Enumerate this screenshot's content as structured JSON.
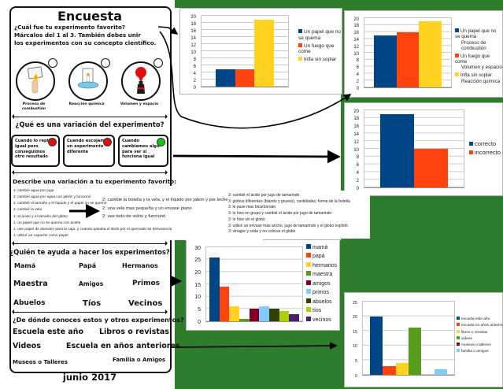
{
  "background_color": "#2d7d2d",
  "worksheet": {
    "title": "Encuesta",
    "intro_lines": [
      "¿Cuál fue tu experimento favorito?",
      "Márcalos del 1 al 3. También debes unir",
      "los experimentos con su concepto científico."
    ],
    "experiments": [
      {
        "icon": "burning-paper-icon",
        "concept": "Proceso de combustión"
      },
      {
        "icon": "candle-in-water-icon",
        "concept": "Reacción química"
      },
      {
        "icon": "balloon-bottle-icon",
        "concept": "Volumen y espacio"
      }
    ],
    "variation": {
      "question": "¿Qué es una variación del experimento?",
      "options": [
        {
          "text": "Cuando lo repito igual pero conseguimos otro resultado",
          "dot_color": "#e01010"
        },
        {
          "text": "Cuando escojamos un experimento diferente",
          "dot_color": "#e01010"
        },
        {
          "text": "Cuando cambiamos algo para ver si funciona igual",
          "dot_color": "#16c416"
        }
      ]
    },
    "describe": {
      "heading": "Describe una variación a tu experimento favorito:",
      "list1": [
        "1: cambié agua por jugo",
        "1: cambié agua por agua con jabón y funcionó",
        "1: cambié el tamaño y el líquido y el papel no se quemó",
        "1: cambié la vela",
        "1: el ácido y el tamaño del globo",
        "1: un papel que no se quema con aceite",
        "1: use papel de aluminio para la caja, y cuando pasaba el dedo por el quemado se desvanecía",
        "1: utilicé un capacito como papel"
      ],
      "list2": [
        "2: cambié la botella y la vela, y el líquido por jabón y por leche",
        "2: una vela mas pequeña y un envase plano",
        "2: use todo de vidrio y funcionó"
      ],
      "list3": [
        "3: cambié el ácido por jugo de tamarindo",
        "3: globos diferentes (blando y grueso), cantidades, forma de la botella",
        "3: le puse mas bicarbonato",
        "3: lo hice en grupo y cambié el ácido por jugo de tamarindo",
        "3: lo hice sin el globo",
        "3: utilicé un envase más ancho, jugo de tamarindo y el globo explotó",
        "3: vinagre y soda y no colocar el globo"
      ]
    },
    "who": {
      "question": "¿Quién te ayuda a hacer los experimentos?",
      "names": [
        "Mamá",
        "Papá",
        "Hermanos",
        "Maestra",
        "Amigos",
        "Primos",
        "Abuelos",
        "Tíos",
        "Vecinos"
      ]
    },
    "where": {
      "question": "¿De dónde conoces estos y otros experimentos?",
      "items": [
        "Escuela este año",
        "Libros o revistas",
        "Videos",
        "Escuela en años anteriores",
        "Museos o Talleres",
        "Familia o Amigos"
      ]
    },
    "footer": "junio 2017"
  },
  "chart_data": [
    {
      "type": "bar",
      "categories": [
        "Un papel que no se quema",
        "Un fuego que come",
        "Infla sin soplar"
      ],
      "values": [
        5,
        5,
        19
      ],
      "colors": [
        "#004586",
        "#ff420e",
        "#ffd320"
      ],
      "legend": [
        "Un papel que no se quema",
        "Un fuego que come",
        "Infla sin soplar"
      ],
      "title": "",
      "xlabel": "",
      "ylabel": "",
      "ylim": [
        0,
        20
      ],
      "ystep": 2,
      "grid": true,
      "legend_position": "right",
      "group_fraction": 0.68
    },
    {
      "type": "bar",
      "categories": [
        "Un papel que no se quema",
        "Un fuego que come",
        "Infla sin soplar"
      ],
      "values": [
        15,
        16,
        19
      ],
      "colors": [
        "#004586",
        "#ff420e",
        "#ffd320"
      ],
      "legend": [
        "Un papel que no se quema",
        "Un fuego que come",
        "Infla sin soplar"
      ],
      "legend_sub": [
        "Proceso de combustión",
        "Volumen y espacio",
        "Reacción química"
      ],
      "title": "",
      "xlabel": "",
      "ylabel": "",
      "ylim": [
        0,
        20
      ],
      "ystep": 2,
      "grid": true,
      "legend_position": "right",
      "group_fraction": 0.78
    },
    {
      "type": "bar",
      "categories": [
        "correcto",
        "incorrecto"
      ],
      "values": [
        19,
        10
      ],
      "colors": [
        "#004586",
        "#ff420e"
      ],
      "legend": [
        "correcto",
        "incorrecto"
      ],
      "title": "",
      "xlabel": "",
      "ylabel": "",
      "ylim": [
        0,
        20
      ],
      "ystep": 2,
      "grid": true,
      "legend_position": "right",
      "group_fraction": 0.68
    },
    {
      "type": "bar",
      "categories": [
        "mamá",
        "papá",
        "hermanos",
        "maestra",
        "amigos",
        "primos",
        "abuelos",
        "tíos",
        "vecinos"
      ],
      "values": [
        26,
        14,
        6,
        1,
        5,
        6,
        5,
        4,
        3
      ],
      "colors": [
        "#004586",
        "#ff420e",
        "#ffd320",
        "#579d1c",
        "#7e0021",
        "#83caff",
        "#314004",
        "#aecf00",
        "#4b1f6f"
      ],
      "legend": [
        "mamá",
        "papá",
        "hermanos",
        "maestra",
        "amigos",
        "primos",
        "abuelos",
        "tíos",
        "vecinos"
      ],
      "title": "",
      "xlabel": "",
      "ylabel": "",
      "ylim": [
        0,
        30
      ],
      "ystep": 5,
      "grid": true,
      "legend_position": "right",
      "group_fraction": 0.93
    },
    {
      "type": "bar",
      "categories": [
        "escuela este año",
        "escuela en años anteriores",
        "libros o revistas",
        "videos",
        "museos o talleres",
        "familia o amigos"
      ],
      "values": [
        20,
        3,
        4,
        16,
        0,
        2
      ],
      "colors": [
        "#004586",
        "#ff420e",
        "#ffd320",
        "#579d1c",
        "#7e0021",
        "#83caff"
      ],
      "legend": [
        "escuela este año",
        "escuela en años anteriores",
        "libros o revistas",
        "videos",
        "museos o talleres",
        "familia o amigos"
      ],
      "title": "",
      "xlabel": "",
      "ylabel": "",
      "ylim": [
        0,
        25
      ],
      "ystep": 5,
      "grid": true,
      "legend_position": "right",
      "group_fraction": 0.85
    }
  ]
}
